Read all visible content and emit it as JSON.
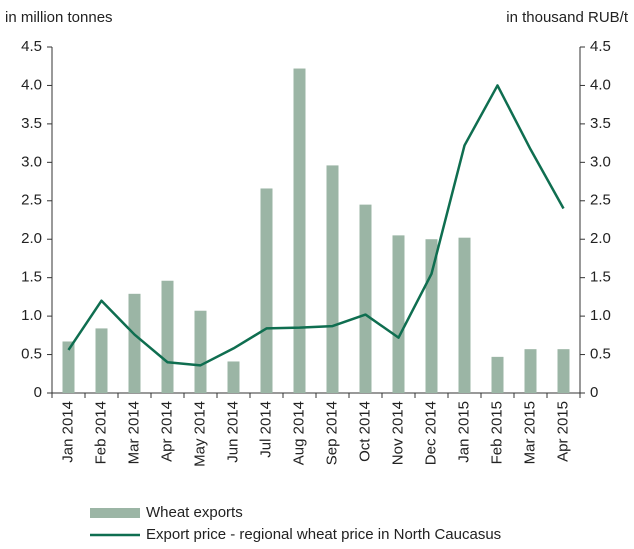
{
  "chart_data": {
    "type": "bar",
    "y_label": "in million tonnes",
    "y2_label": "in thousand RUB/t",
    "categories": [
      "Jan 2014",
      "Feb 2014",
      "Mar 2014",
      "Apr 2014",
      "May 2014",
      "Jun 2014",
      "Jul 2014",
      "Aug 2014",
      "Sep 2014",
      "Oct 2014",
      "Nov 2014",
      "Dec 2014",
      "Jan 2015",
      "Feb 2015",
      "Mar 2015",
      "Apr 2015"
    ],
    "series": [
      {
        "name": "Wheat exports",
        "type": "bar",
        "color": "#9bb5a5",
        "values": [
          0.67,
          0.84,
          1.29,
          1.46,
          1.07,
          0.41,
          2.66,
          4.22,
          2.96,
          2.45,
          2.05,
          2.0,
          2.02,
          0.47,
          0.57,
          0.57
        ]
      },
      {
        "name": "Export price - regional wheat price in North Caucasus",
        "type": "line",
        "axis": "y2",
        "color": "#0f6e50",
        "values": [
          0.56,
          1.2,
          0.76,
          0.4,
          0.36,
          0.58,
          0.84,
          0.85,
          0.87,
          1.02,
          0.72,
          1.55,
          3.22,
          4.0,
          3.17,
          2.4
        ]
      }
    ],
    "ylim": [
      0,
      4.5
    ],
    "yticks": [
      0,
      0.5,
      {
        "value": 1,
        "label": "1.0"
      },
      1.5,
      {
        "value": 2,
        "label": "2.0"
      },
      2.5,
      {
        "value": 3,
        "label": "3.0"
      },
      3.5,
      {
        "value": 4,
        "label": "4.0"
      },
      4.5
    ],
    "y2lim": [
      0,
      4.5
    ],
    "y2ticks": [
      0,
      0.5,
      {
        "value": 1,
        "label": "1.0"
      },
      1.5,
      {
        "value": 2,
        "label": "2.0"
      },
      2.5,
      {
        "value": 3,
        "label": "3.0"
      },
      3.5,
      {
        "value": 4,
        "label": "4.0"
      },
      4.5
    ],
    "grid": false,
    "legend": "bottom"
  }
}
